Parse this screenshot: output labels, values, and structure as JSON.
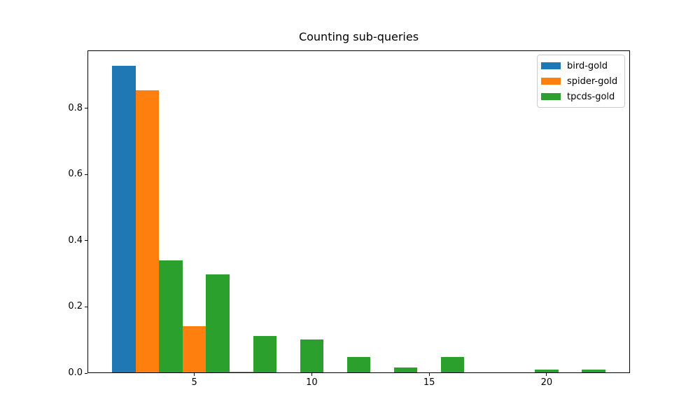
{
  "figure": {
    "background_color": "#ffffff",
    "text_color": "#000000",
    "spine_color": "#000000",
    "legend_border_color": "#cccccc"
  },
  "chart_data": {
    "type": "bar",
    "title": "Counting sub-queries",
    "xlabel": "",
    "ylabel": "",
    "grid": false,
    "legend_position": "upper right",
    "xlim": [
      0.45,
      23.55
    ],
    "ylim": [
      0,
      0.9744
    ],
    "bar_width": 1,
    "xticks": [
      {
        "pos": 5,
        "label": "5"
      },
      {
        "pos": 10,
        "label": "10"
      },
      {
        "pos": 15,
        "label": "15"
      },
      {
        "pos": 20,
        "label": "20"
      }
    ],
    "yticks": [
      {
        "pos": 0.0,
        "label": "0.0"
      },
      {
        "pos": 0.2,
        "label": "0.2"
      },
      {
        "pos": 0.4,
        "label": "0.4"
      },
      {
        "pos": 0.6,
        "label": "0.6"
      },
      {
        "pos": 0.8,
        "label": "0.8"
      }
    ],
    "series": [
      {
        "name": "bird-gold",
        "color": "#1f77b4",
        "points": [
          {
            "x": 2,
            "y": 0.928
          }
        ]
      },
      {
        "name": "spider-gold",
        "color": "#ff7f0e",
        "points": [
          {
            "x": 3,
            "y": 0.855
          },
          {
            "x": 5,
            "y": 0.141
          },
          {
            "x": 7,
            "y": 0.004
          }
        ]
      },
      {
        "name": "tpcds-gold",
        "color": "#2ca02c",
        "points": [
          {
            "x": 4,
            "y": 0.341
          },
          {
            "x": 6,
            "y": 0.299
          },
          {
            "x": 8,
            "y": 0.112
          },
          {
            "x": 10,
            "y": 0.102
          },
          {
            "x": 12,
            "y": 0.049
          },
          {
            "x": 14,
            "y": 0.018
          },
          {
            "x": 16,
            "y": 0.049
          },
          {
            "x": 20,
            "y": 0.01
          },
          {
            "x": 22,
            "y": 0.01
          }
        ]
      }
    ]
  }
}
